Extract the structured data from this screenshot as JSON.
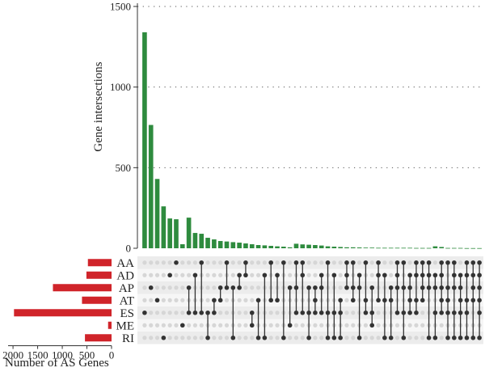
{
  "chart_data": {
    "type": "upset",
    "ylabel": "Gene intersections",
    "xlabel": "Number of AS Genes",
    "yticks": [
      "0",
      "500",
      "1000",
      "1500"
    ],
    "ylim": [
      0,
      1500
    ],
    "xticks": [
      "2000",
      "1500",
      "1000",
      "500",
      "0"
    ],
    "set_size_lim": [
      0,
      2100
    ],
    "grid": "dotted horizontal",
    "colors": {
      "intersections": "#2e8b3e",
      "set_sizes": "#d0242a",
      "dot_active": "#333333",
      "dot_inactive": "#d6d6d6",
      "matrix_bg": "#ececec"
    },
    "sets": [
      {
        "name": "AA",
        "size": 480
      },
      {
        "name": "AD",
        "size": 510
      },
      {
        "name": "AP",
        "size": 1190
      },
      {
        "name": "AT",
        "size": 600
      },
      {
        "name": "ES",
        "size": 1980
      },
      {
        "name": "ME",
        "size": 70
      },
      {
        "name": "RI",
        "size": 540
      }
    ],
    "intersections": [
      {
        "sets": [
          "ES"
        ],
        "count": 1340
      },
      {
        "sets": [
          "AP"
        ],
        "count": 765
      },
      {
        "sets": [
          "AT"
        ],
        "count": 430
      },
      {
        "sets": [
          "RI"
        ],
        "count": 260
      },
      {
        "sets": [
          "AD"
        ],
        "count": 185
      },
      {
        "sets": [
          "AA"
        ],
        "count": 180
      },
      {
        "sets": [
          "ME"
        ],
        "count": 25
      },
      {
        "sets": [
          "AP",
          "ES"
        ],
        "count": 190
      },
      {
        "sets": [
          "AD",
          "ES"
        ],
        "count": 95
      },
      {
        "sets": [
          "AA",
          "ES"
        ],
        "count": 90
      },
      {
        "sets": [
          "ES",
          "RI"
        ],
        "count": 65
      },
      {
        "sets": [
          "AT",
          "ES"
        ],
        "count": 55
      },
      {
        "sets": [
          "AP",
          "AT"
        ],
        "count": 45
      },
      {
        "sets": [
          "AA",
          "AP"
        ],
        "count": 42
      },
      {
        "sets": [
          "AP",
          "RI"
        ],
        "count": 38
      },
      {
        "sets": [
          "AD",
          "AP"
        ],
        "count": 35
      },
      {
        "sets": [
          "AA",
          "AD"
        ],
        "count": 30
      },
      {
        "sets": [
          "ES",
          "ME"
        ],
        "count": 25
      },
      {
        "sets": [
          "AT",
          "RI"
        ],
        "count": 20
      },
      {
        "sets": [
          "AD",
          "RI"
        ],
        "count": 18
      },
      {
        "sets": [
          "AA",
          "AT"
        ],
        "count": 15
      },
      {
        "sets": [
          "AD",
          "AT"
        ],
        "count": 12
      },
      {
        "sets": [
          "AA",
          "RI"
        ],
        "count": 10
      },
      {
        "sets": [
          "AP",
          "ME"
        ],
        "count": 6
      },
      {
        "sets": [
          "AA",
          "AP",
          "ES"
        ],
        "count": 28
      },
      {
        "sets": [
          "AA",
          "AD",
          "ES"
        ],
        "count": 24
      },
      {
        "sets": [
          "AP",
          "ES",
          "RI"
        ],
        "count": 22
      },
      {
        "sets": [
          "AP",
          "AT",
          "ES"
        ],
        "count": 20
      },
      {
        "sets": [
          "AD",
          "AP",
          "ES"
        ],
        "count": 17
      },
      {
        "sets": [
          "AA",
          "ES",
          "RI"
        ],
        "count": 12
      },
      {
        "sets": [
          "AD",
          "ES",
          "RI"
        ],
        "count": 10
      },
      {
        "sets": [
          "AT",
          "ES",
          "RI"
        ],
        "count": 8
      },
      {
        "sets": [
          "AA",
          "AD",
          "AP"
        ],
        "count": 6
      },
      {
        "sets": [
          "AA",
          "AP",
          "AT"
        ],
        "count": 6
      },
      {
        "sets": [
          "AD",
          "AP",
          "RI"
        ],
        "count": 5
      },
      {
        "sets": [
          "AA",
          "AT",
          "ES"
        ],
        "count": 4
      },
      {
        "sets": [
          "AP",
          "ES",
          "ME"
        ],
        "count": 4
      },
      {
        "sets": [
          "AA",
          "AD",
          "AT"
        ],
        "count": 3
      },
      {
        "sets": [
          "AD",
          "AT",
          "RI"
        ],
        "count": 3
      },
      {
        "sets": [
          "AP",
          "AT",
          "RI"
        ],
        "count": 3
      },
      {
        "sets": [
          "AA",
          "AD",
          "AP",
          "ES"
        ],
        "count": 3
      },
      {
        "sets": [
          "AA",
          "AP",
          "ES",
          "RI"
        ],
        "count": 3
      },
      {
        "sets": [
          "AD",
          "AP",
          "AT",
          "ES"
        ],
        "count": 3
      },
      {
        "sets": [
          "AA",
          "AD",
          "AT",
          "ES"
        ],
        "count": 2
      },
      {
        "sets": [
          "AA",
          "AD",
          "AP",
          "AT"
        ],
        "count": 2
      },
      {
        "sets": [
          "AA",
          "AD",
          "AP",
          "RI"
        ],
        "count": 2
      },
      {
        "sets": [
          "AD",
          "AP",
          "ES",
          "RI"
        ],
        "count": 12
      },
      {
        "sets": [
          "AA",
          "AD",
          "AP",
          "AT",
          "ES"
        ],
        "count": 8
      },
      {
        "sets": [
          "AA",
          "AP",
          "AT",
          "ES",
          "RI"
        ],
        "count": 2
      },
      {
        "sets": [
          "AA",
          "AD",
          "AP",
          "ES",
          "RI"
        ],
        "count": 2
      },
      {
        "sets": [
          "AD",
          "AP",
          "AT",
          "ES",
          "RI"
        ],
        "count": 2
      },
      {
        "sets": [
          "AA",
          "AD",
          "AT",
          "ES",
          "RI"
        ],
        "count": 1
      },
      {
        "sets": [
          "AA",
          "AD",
          "AP",
          "AT",
          "RI"
        ],
        "count": 1
      },
      {
        "sets": [
          "AA",
          "AD",
          "AP",
          "AT",
          "ES",
          "RI"
        ],
        "count": 1
      }
    ]
  }
}
